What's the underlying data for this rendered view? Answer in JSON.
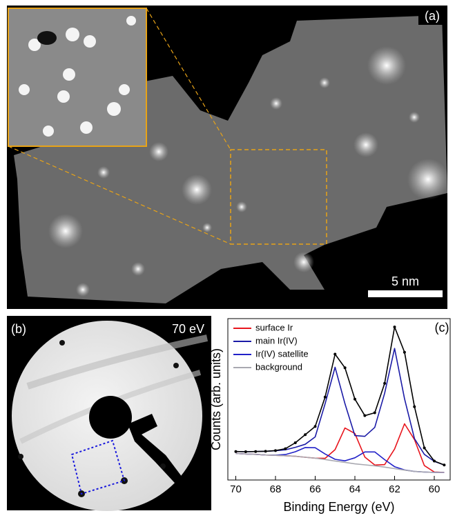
{
  "panel_a": {
    "label": "(a)",
    "scale_bar": "5 nm"
  },
  "panel_b": {
    "label": "(b)",
    "energy": "70 eV"
  },
  "chart_data": {
    "type": "line",
    "panel_label": "(c)",
    "x_label": "Binding Energy (eV)",
    "y_label": "Counts (arb. units)",
    "x": [
      70,
      69.5,
      69,
      68.5,
      68,
      67.5,
      67,
      66.5,
      66,
      65.5,
      65,
      64.5,
      64,
      63.5,
      63,
      62.5,
      62,
      61.5,
      61,
      60.5,
      60,
      59.5
    ],
    "xlim": [
      70.4,
      59.2
    ],
    "xticks": [
      70,
      68,
      66,
      64,
      62,
      60
    ],
    "ylim": [
      0,
      0.85
    ],
    "legend": "upper left",
    "series": [
      {
        "name": "surface Ir",
        "color": "#e8141c",
        "values": [
          0.14,
          0.137,
          0.135,
          0.132,
          0.13,
          0.128,
          0.125,
          0.12,
          0.115,
          0.114,
          0.16,
          0.274,
          0.245,
          0.121,
          0.079,
          0.081,
          0.163,
          0.296,
          0.213,
          0.076,
          0.042,
          0.04
        ]
      },
      {
        "name": "main Ir(IV)",
        "color": "#1a1aa6",
        "values": [
          0.15,
          0.149,
          0.15,
          0.151,
          0.154,
          0.159,
          0.172,
          0.188,
          0.227,
          0.402,
          0.594,
          0.402,
          0.234,
          0.23,
          0.277,
          0.457,
          0.693,
          0.428,
          0.218,
          0.135,
          0.098,
          0.079
        ]
      },
      {
        "name": "Ir(IV) satellite",
        "color": "#2020c8",
        "values": [
          0.14,
          0.137,
          0.135,
          0.132,
          0.131,
          0.134,
          0.149,
          0.171,
          0.17,
          0.137,
          0.109,
          0.101,
          0.117,
          0.148,
          0.148,
          0.107,
          0.07,
          0.053,
          0.045,
          0.042,
          0.04,
          0.04
        ]
      },
      {
        "name": "background",
        "color": "#a8a8b0",
        "values": [
          0.14,
          0.137,
          0.135,
          0.132,
          0.13,
          0.128,
          0.125,
          0.12,
          0.115,
          0.108,
          0.1,
          0.093,
          0.085,
          0.08,
          0.075,
          0.068,
          0.06,
          0.052,
          0.045,
          0.042,
          0.04,
          0.04
        ]
      },
      {
        "color": "#000000",
        "values": [
          0.15,
          0.149,
          0.15,
          0.151,
          0.155,
          0.165,
          0.196,
          0.239,
          0.282,
          0.437,
          0.663,
          0.591,
          0.426,
          0.339,
          0.354,
          0.509,
          0.806,
          0.673,
          0.386,
          0.169,
          0.1,
          0.079
        ]
      },
      {
        "color": "#000000",
        "marker": "dot",
        "values": [
          0.15,
          0.149,
          0.15,
          0.151,
          0.155,
          0.165,
          0.196,
          0.239,
          0.282,
          0.437,
          0.663,
          0.591,
          0.426,
          0.339,
          0.354,
          0.509,
          0.806,
          0.673,
          0.386,
          0.169,
          0.1,
          0.079
        ]
      }
    ]
  }
}
